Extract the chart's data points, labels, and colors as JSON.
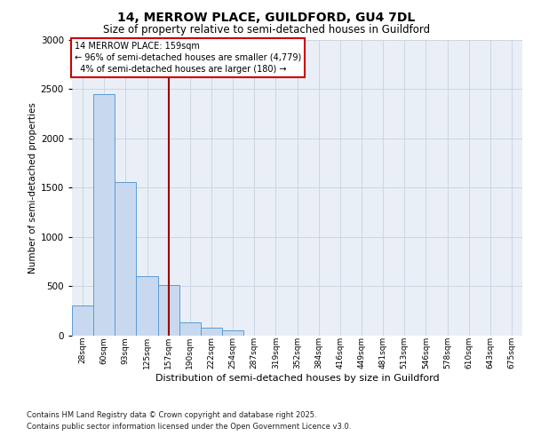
{
  "title1": "14, MERROW PLACE, GUILDFORD, GU4 7DL",
  "title2": "Size of property relative to semi-detached houses in Guildford",
  "xlabel": "Distribution of semi-detached houses by size in Guildford",
  "ylabel": "Number of semi-detached properties",
  "categories": [
    "28sqm",
    "60sqm",
    "93sqm",
    "125sqm",
    "157sqm",
    "190sqm",
    "222sqm",
    "254sqm",
    "287sqm",
    "319sqm",
    "352sqm",
    "384sqm",
    "416sqm",
    "449sqm",
    "481sqm",
    "513sqm",
    "546sqm",
    "578sqm",
    "610sqm",
    "643sqm",
    "675sqm"
  ],
  "values": [
    300,
    2450,
    1560,
    600,
    510,
    130,
    75,
    50,
    0,
    0,
    0,
    0,
    0,
    0,
    0,
    0,
    0,
    0,
    0,
    0,
    0
  ],
  "bar_color": "#c8d9ef",
  "bar_edge_color": "#5b9bd5",
  "property_line_idx": 4,
  "property_size": "159sqm",
  "smaller_pct": 96,
  "smaller_count": 4779,
  "larger_pct": 4,
  "larger_count": 180,
  "property_name": "14 MERROW PLACE",
  "annotation_box_color": "#ffffff",
  "annotation_box_edge": "#cc0000",
  "vline_color": "#990000",
  "grid_color": "#ccd5e3",
  "bg_color": "#eaeff7",
  "ylim": [
    0,
    3000
  ],
  "yticks": [
    0,
    500,
    1000,
    1500,
    2000,
    2500,
    3000
  ],
  "title1_fontsize": 10,
  "title2_fontsize": 8.5,
  "footnote1": "Contains HM Land Registry data © Crown copyright and database right 2025.",
  "footnote2": "Contains public sector information licensed under the Open Government Licence v3.0."
}
